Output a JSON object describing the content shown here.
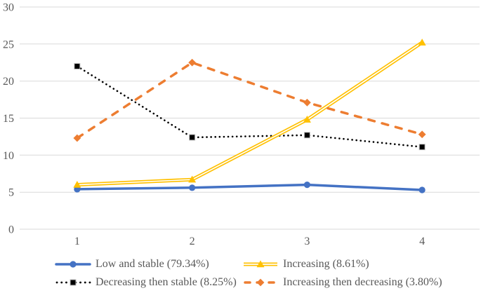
{
  "chart_data": {
    "type": "line",
    "title": "",
    "xlabel": "",
    "ylabel": "",
    "categories": [
      "1",
      "2",
      "3",
      "4"
    ],
    "yticks": [
      0,
      5,
      10,
      15,
      20,
      25,
      30
    ],
    "ylim": [
      0,
      30
    ],
    "grid": true,
    "legend_position": "bottom",
    "legend_columns": 2,
    "legend_order": [
      0,
      2,
      1,
      3
    ],
    "series": [
      {
        "name": "Low and stable (79.34%)",
        "color": "#4472C4",
        "marker": "circle",
        "line": "solid",
        "values": [
          5.4,
          5.6,
          6.0,
          5.3
        ]
      },
      {
        "name": "Decreasing then stable (8.25%)",
        "color": "#000000",
        "marker": "square",
        "line": "dotted",
        "values": [
          22.0,
          12.4,
          12.7,
          11.1
        ]
      },
      {
        "name": "Increasing (8.61%)",
        "color": "#FFC000",
        "marker": "triangle",
        "line": "double",
        "values": [
          6.0,
          6.7,
          14.8,
          25.2
        ]
      },
      {
        "name": "Increasing then decreasing (3.80%)",
        "color": "#ED7D31",
        "marker": "diamond",
        "line": "dashed",
        "values": [
          12.3,
          22.5,
          17.1,
          12.8
        ]
      }
    ]
  },
  "colors": {
    "background": "#FFFFFF",
    "gridline": "#D9D9D9",
    "axis_text": "#595959",
    "legend_text": "#595959",
    "marker_border": "#BFBFBF",
    "double_line_center": "#FFFFFF"
  }
}
